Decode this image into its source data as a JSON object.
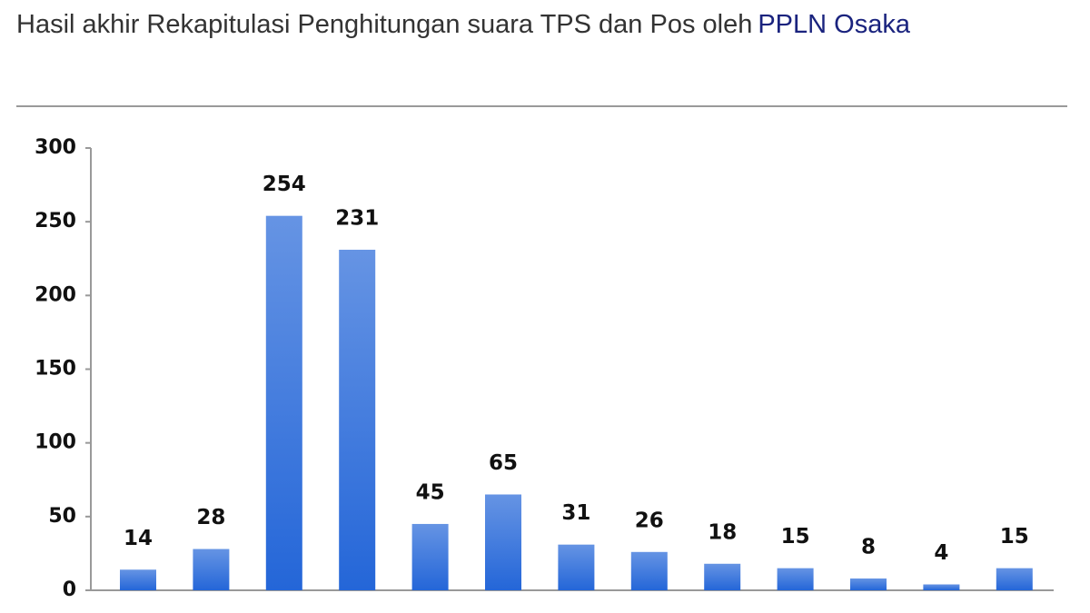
{
  "chart_data": {
    "type": "bar",
    "title": "Hasil akhir Rekapitulasi Penghitungan suara TPS dan Pos oleh",
    "title_link": "PPLN Osaka",
    "values": [
      14,
      28,
      254,
      231,
      45,
      65,
      31,
      26,
      18,
      15,
      8,
      4,
      15
    ],
    "color": "#2466d8",
    "ylim": [
      0,
      300
    ],
    "yticks": [
      0,
      50,
      100,
      150,
      200,
      250,
      300
    ],
    "grid": false,
    "value_labels_shown": true
  }
}
